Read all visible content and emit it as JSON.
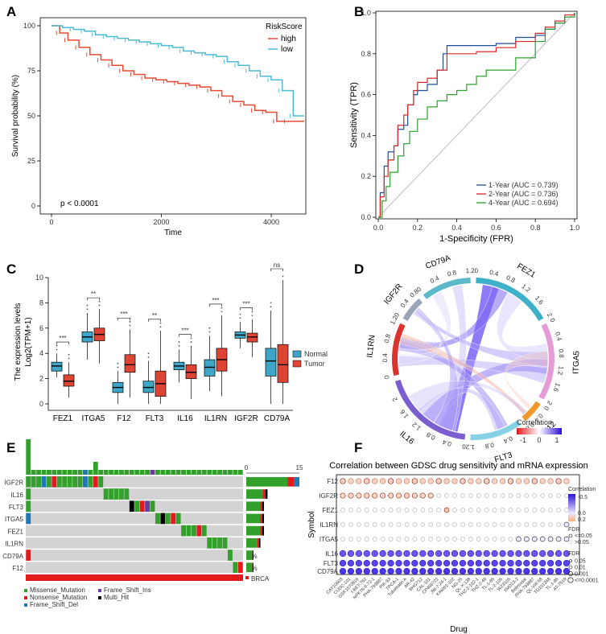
{
  "colors": {
    "high": "#e64b35",
    "low": "#4dbbd5",
    "roc1": "#1f4e99",
    "roc2": "#d62728",
    "roc4": "#2ca02c",
    "normal": "#3ea6c9",
    "tumor": "#dd4433",
    "missense": "#33a02c",
    "nonsense": "#e31a1c",
    "fsdel": "#1f78b4",
    "fsins": "#6a3d9a",
    "multihit": "#000000",
    "grid": "#d3d3d3",
    "brca": "#e31a1c"
  },
  "panels": {
    "a": "A",
    "b": "B",
    "c": "C",
    "d": "D",
    "e": "E",
    "f": "F"
  },
  "chart_data": [
    {
      "type": "line",
      "name": "Kaplan-Meier survival by RiskScore",
      "xlabel": "Time",
      "ylabel": "Survival probability (%)",
      "xticks": [
        "0",
        "2000",
        "4000"
      ],
      "yticks": [
        "0",
        "25",
        "50",
        "75",
        "100"
      ],
      "xlim": [
        0,
        4600
      ],
      "ylim": [
        0,
        100
      ],
      "legend_title": "RiskScore",
      "annotation": "p < 0.0001",
      "series": [
        {
          "name": "high",
          "x": [
            0,
            150,
            300,
            500,
            700,
            900,
            1100,
            1300,
            1500,
            1700,
            1900,
            2100,
            2300,
            2500,
            2700,
            2900,
            3100,
            3300,
            3500,
            3700,
            3900,
            4100,
            4300,
            4600
          ],
          "y": [
            100,
            96,
            92,
            88,
            84,
            81,
            78,
            75,
            73,
            71,
            70,
            69,
            68,
            67,
            66,
            64,
            61,
            58,
            56,
            53,
            52,
            47,
            47,
            47
          ]
        },
        {
          "name": "low",
          "x": [
            0,
            200,
            400,
            600,
            800,
            1000,
            1200,
            1400,
            1600,
            1800,
            2000,
            2200,
            2400,
            2600,
            2800,
            3000,
            3200,
            3400,
            3600,
            3800,
            4000,
            4200,
            4400,
            4600
          ],
          "y": [
            100,
            99,
            98,
            97,
            95,
            94,
            93,
            92,
            91,
            90,
            89,
            88,
            86,
            85,
            84,
            83,
            80,
            78,
            75,
            72,
            70,
            64,
            50,
            50
          ]
        }
      ]
    },
    {
      "type": "line",
      "name": "Time-dependent ROC",
      "xlabel": "1-Specificity (FPR)",
      "ylabel": "Sensitivity (TPR)",
      "xticks": [
        "0.0",
        "0.2",
        "0.4",
        "0.6",
        "0.8",
        "1.0"
      ],
      "yticks": [
        "0.0",
        "0.2",
        "0.4",
        "0.6",
        "0.8",
        "1.0"
      ],
      "xlim": [
        0,
        1
      ],
      "ylim": [
        0,
        1
      ],
      "series": [
        {
          "name": "1-Year (AUC = 0.739)",
          "x": [
            0,
            0.01,
            0.03,
            0.05,
            0.08,
            0.1,
            0.13,
            0.15,
            0.18,
            0.2,
            0.25,
            0.3,
            0.33,
            0.35,
            0.4,
            0.5,
            0.6,
            0.7,
            0.8,
            0.85,
            0.9,
            0.95,
            1.0
          ],
          "y": [
            0,
            0.12,
            0.25,
            0.32,
            0.35,
            0.43,
            0.45,
            0.55,
            0.6,
            0.62,
            0.65,
            0.72,
            0.8,
            0.84,
            0.84,
            0.84,
            0.85,
            0.88,
            0.89,
            0.92,
            0.95,
            0.98,
            1.0
          ]
        },
        {
          "name": "2-Year (AUC = 0.736)",
          "x": [
            0,
            0.01,
            0.03,
            0.05,
            0.08,
            0.1,
            0.13,
            0.15,
            0.18,
            0.2,
            0.25,
            0.3,
            0.35,
            0.4,
            0.5,
            0.6,
            0.7,
            0.8,
            0.85,
            0.9,
            0.95,
            1.0
          ],
          "y": [
            0,
            0.1,
            0.2,
            0.28,
            0.35,
            0.45,
            0.5,
            0.55,
            0.62,
            0.66,
            0.68,
            0.72,
            0.8,
            0.8,
            0.81,
            0.83,
            0.86,
            0.9,
            0.93,
            0.96,
            0.99,
            1.0
          ]
        },
        {
          "name": "4-Year (AUC = 0.694)",
          "x": [
            0,
            0.02,
            0.04,
            0.06,
            0.1,
            0.13,
            0.16,
            0.2,
            0.25,
            0.3,
            0.35,
            0.4,
            0.45,
            0.5,
            0.55,
            0.6,
            0.7,
            0.8,
            0.85,
            0.9,
            0.95,
            1.0
          ],
          "y": [
            0,
            0.08,
            0.15,
            0.22,
            0.3,
            0.36,
            0.42,
            0.48,
            0.54,
            0.57,
            0.6,
            0.62,
            0.65,
            0.69,
            0.72,
            0.72,
            0.78,
            0.86,
            0.92,
            0.95,
            0.98,
            1.0
          ]
        }
      ]
    },
    {
      "type": "box",
      "name": "Expression levels Normal vs Tumor",
      "ylabel_line1": "The expression levels",
      "ylabel_line2": "Log2(TPM+1)",
      "yticks": [
        "0",
        "2",
        "4",
        "6",
        "8",
        "10"
      ],
      "ylim": [
        0,
        10
      ],
      "legend": [
        "Normal",
        "Tumor"
      ],
      "genes": [
        "FEZ1",
        "ITGA5",
        "F12",
        "FLT3",
        "IL16",
        "IL1RN",
        "IGF2R",
        "CD79A"
      ],
      "significance": [
        "***",
        "**",
        "***",
        "**",
        "***",
        "***",
        "***",
        "ns"
      ],
      "normal": [
        [
          2.1,
          2.6,
          3.0,
          3.3,
          4.0
        ],
        [
          3.5,
          4.9,
          5.3,
          5.7,
          7.2
        ],
        [
          0,
          0.9,
          1.3,
          1.7,
          2.6
        ],
        [
          0,
          0.9,
          1.3,
          1.8,
          3.4
        ],
        [
          1.7,
          2.7,
          3.0,
          3.3,
          4.3
        ],
        [
          1.0,
          2.2,
          2.9,
          3.5,
          5.4
        ],
        [
          4.4,
          5.2,
          5.45,
          5.7,
          6.5
        ],
        [
          0,
          2.2,
          3.4,
          4.4,
          7.4
        ]
      ],
      "tumor": [
        [
          0.5,
          1.4,
          1.8,
          2.3,
          3.3
        ],
        [
          3.2,
          5.0,
          5.5,
          6.0,
          7.5
        ],
        [
          0.5,
          2.5,
          3.1,
          3.9,
          5.9
        ],
        [
          0,
          0.6,
          1.6,
          2.6,
          5.8
        ],
        [
          0.4,
          2.0,
          2.5,
          3.1,
          4.6
        ],
        [
          0.6,
          2.6,
          3.5,
          4.4,
          7.0
        ],
        [
          3.7,
          4.9,
          5.3,
          5.6,
          6.7
        ],
        [
          0,
          1.7,
          3.1,
          4.7,
          9.8
        ]
      ]
    },
    {
      "type": "chord",
      "name": "Gene correlation chord diagram",
      "sectors": [
        "CD79A",
        "FEZ1",
        "ITGA5",
        "F12",
        "FLT3",
        "IL16",
        "IL1RN",
        "IGF2R"
      ],
      "sector_ticks": [
        "0",
        "0.4",
        "0.8",
        "1.2",
        "1.6",
        "2"
      ],
      "legend_title": "Correlation",
      "legend_ticks": [
        "-1",
        "0",
        "1"
      ]
    },
    {
      "type": "heatmap",
      "name": "Mutation waterfall (oncoplot)",
      "genes": [
        "IGF2R",
        "IL16",
        "FLT3",
        "ITGA5",
        "FEZ1",
        "IL1RN",
        "CD79A",
        "F12"
      ],
      "percent": [
        "39%",
        "16%",
        "13%",
        "13%",
        "13%",
        "11%",
        "5%",
        "5%"
      ],
      "counts": [
        15,
        6,
        5,
        5,
        5,
        4,
        2,
        2
      ],
      "axis_ticks": [
        "0",
        "15"
      ],
      "cohort": "BRCA",
      "legend": [
        "Missense_Mutation",
        "Nonsense_Mutation",
        "Frame_Shift_Del",
        "Frame_Shift_Ins",
        "Multi_Hit"
      ]
    },
    {
      "type": "scatter",
      "name": "Correlation between GDSC drug sensitivity and mRNA expression",
      "title": "Correlation between GDSC drug sensitivity and mRNA expression",
      "xlabel": "Drug",
      "ylabel": "Symbol",
      "symbols": [
        "F12",
        "IGF2R",
        "FEZ1",
        "IL1RN",
        "ITGA5",
        "IL16",
        "FLT3",
        "CD79A"
      ],
      "drugs": [
        "CAY10603",
        "CUDC-101",
        "GSK1070916",
        "I-BET-762",
        "NPK76-II-72-1",
        "PHA-793887",
        "PIK-93",
        "TPCA-1",
        "Tubastatin A",
        "AR-42",
        "BHG712",
        "CAL-101",
        "CP466722",
        "JW-7-24-1",
        "KIN001-102",
        "NG-25",
        "QL-X-138",
        "THZ-2-102-1",
        "THZ-2-49",
        "TL-1-85",
        "TL-2-105",
        "WZ3105",
        "XMD13-2",
        "Belinostat",
        "PHA-793887",
        "QL-VIII-58",
        "TG101348",
        "TL-1-85",
        "AT-7519"
      ],
      "legend_correlation_title": "Correlation",
      "legend_correlation_ticks": [
        "-0.5",
        "0.0",
        "0.2"
      ],
      "legend_fdr1_title": "FDR",
      "legend_fdr1": [
        "<=0.05",
        ">0.05"
      ],
      "legend_fdr2_title": "FDR",
      "legend_fdr2": [
        "0.05",
        "0.01",
        "0.001",
        "<=0.0001"
      ]
    }
  ]
}
